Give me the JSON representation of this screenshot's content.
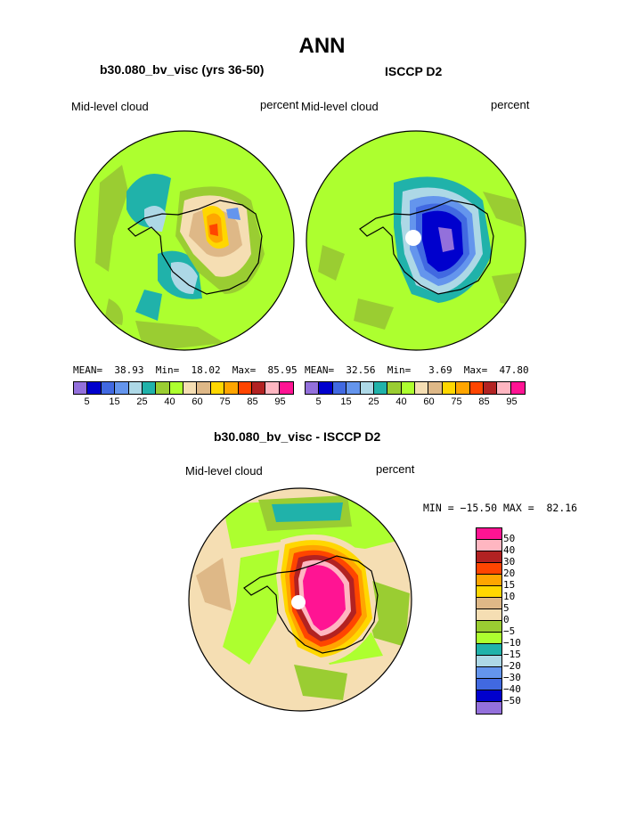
{
  "page_title": "ANN",
  "left_map": {
    "title": "b30.080_bv_visc (yrs 36-50)",
    "variable": "Mid-level cloud",
    "units": "percent",
    "stats": "MEAN=  38.93  Min=  18.02  Max=  85.95"
  },
  "right_map": {
    "title": "ISCCP D2",
    "variable": "Mid-level cloud",
    "units": "percent",
    "stats": "MEAN=  32.56  Min=   3.69  Max=  47.80"
  },
  "horizontal_colorbar": {
    "colors": [
      "#9370db",
      "#0000cd",
      "#4169e1",
      "#6495ed",
      "#add8e6",
      "#20b2aa",
      "#9acd32",
      "#adff2f",
      "#f5deb3",
      "#deb887",
      "#ffd700",
      "#ffa500",
      "#ff4500",
      "#b22222",
      "#ffb6c1",
      "#ff1493"
    ],
    "tick_labels": [
      "5",
      "15",
      "25",
      "40",
      "60",
      "75",
      "85",
      "95"
    ]
  },
  "diff_map": {
    "title": "b30.080_bv_visc - ISCCP D2",
    "variable": "Mid-level cloud",
    "units": "percent",
    "minmax": "MIN = −15.50 MAX =  82.16"
  },
  "vertical_colorbar": {
    "colors": [
      "#ff1493",
      "#ffb6c1",
      "#b22222",
      "#ff4500",
      "#ffa500",
      "#ffd700",
      "#deb887",
      "#f5deb3",
      "#9acd32",
      "#adff2f",
      "#20b2aa",
      "#add8e6",
      "#6495ed",
      "#4169e1",
      "#0000cd",
      "#9370db"
    ],
    "tick_labels": [
      "50",
      "40",
      "30",
      "20",
      "15",
      "10",
      "5",
      "0",
      "−5",
      "−10",
      "−15",
      "−20",
      "−30",
      "−40",
      "−50"
    ]
  },
  "colors": {
    "ocean_green": "#adff2f",
    "ocean_tan": "#f5deb3",
    "coast": "#000000"
  }
}
